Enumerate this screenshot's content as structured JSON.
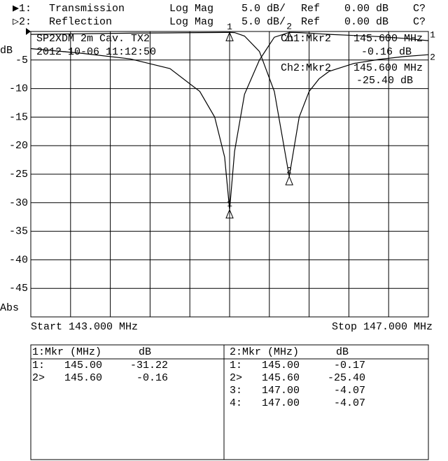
{
  "chart_data": {
    "type": "line",
    "annotations": {
      "title": "SP2XDM 2m Cav. TX2",
      "timestamp": "2012-10-06 11:12:50",
      "ch1_marker": "Ch1:Mkr2",
      "ch1_freq": "145.600 MHz",
      "ch1_value": "-0.16 dB",
      "ch2_marker": "Ch2:Mkr2",
      "ch2_freq": "145.600 MHz",
      "ch2_value": "-25.40 dB"
    },
    "y_label_top": "dB",
    "y_label_bottom": "Abs",
    "start_label": "Start 143.000 MHz",
    "stop_label": "Stop 147.000 MHz",
    "x": [
      143,
      143.5,
      144,
      144.4,
      144.7,
      144.85,
      144.95,
      145.0,
      145.05,
      145.15,
      145.3,
      145.45,
      145.6,
      145.7,
      145.8,
      145.9,
      146.0,
      146.25,
      146.5,
      146.75,
      147
    ],
    "series": [
      {
        "name": "Transmission",
        "prefix": "▶1:",
        "format": "Log Mag",
        "scale": "5.0 dB/",
        "ref_label": "Ref",
        "ref": "0.00 dB",
        "status": "C?",
        "end_label": "1",
        "color": "#000000",
        "values": [
          -3.0,
          -3.8,
          -4.8,
          -6.5,
          -10.5,
          -15,
          -22,
          -31.22,
          -21,
          -11,
          -5,
          -1.0,
          -0.16,
          -0.2,
          -0.3,
          -0.4,
          -0.5,
          -0.7,
          -0.9,
          -1.2,
          -1.6
        ]
      },
      {
        "name": "Reflection",
        "prefix": "▷2:",
        "format": "Log Mag",
        "scale": "5.0 dB/",
        "ref_label": "Ref",
        "ref": "0.00 dB",
        "status": "C?",
        "end_label": "2",
        "color": "#000000",
        "values": [
          -0.5,
          -0.4,
          -0.3,
          -0.25,
          -0.2,
          -0.18,
          -0.17,
          -0.17,
          -0.2,
          -0.8,
          -3.5,
          -10.5,
          -25.4,
          -15,
          -10.5,
          -8.3,
          -7,
          -5.6,
          -4.9,
          -4.4,
          -4.07
        ]
      }
    ],
    "markers": [
      {
        "label": "1",
        "x": 145.0
      },
      {
        "label": "2",
        "x": 145.6
      }
    ],
    "xlim": [
      143,
      147
    ],
    "ylim": [
      -50,
      0
    ],
    "yticks": [
      -5,
      -10,
      -15,
      -20,
      -25,
      -30,
      -35,
      -40,
      -45
    ],
    "grid": true,
    "marker_tables": [
      {
        "header": [
          "1:Mkr (MHz)",
          "dB"
        ],
        "rows": [
          [
            "1:",
            "145.00",
            "-31.22"
          ],
          [
            "2>",
            "145.60",
            "-0.16"
          ]
        ]
      },
      {
        "header": [
          "2:Mkr (MHz)",
          "dB"
        ],
        "rows": [
          [
            "1:",
            "145.00",
            "-0.17"
          ],
          [
            "2>",
            "145.60",
            "-25.40"
          ],
          [
            "3:",
            "147.00",
            "-4.07"
          ],
          [
            "4:",
            "147.00",
            "-4.07"
          ]
        ]
      }
    ]
  }
}
